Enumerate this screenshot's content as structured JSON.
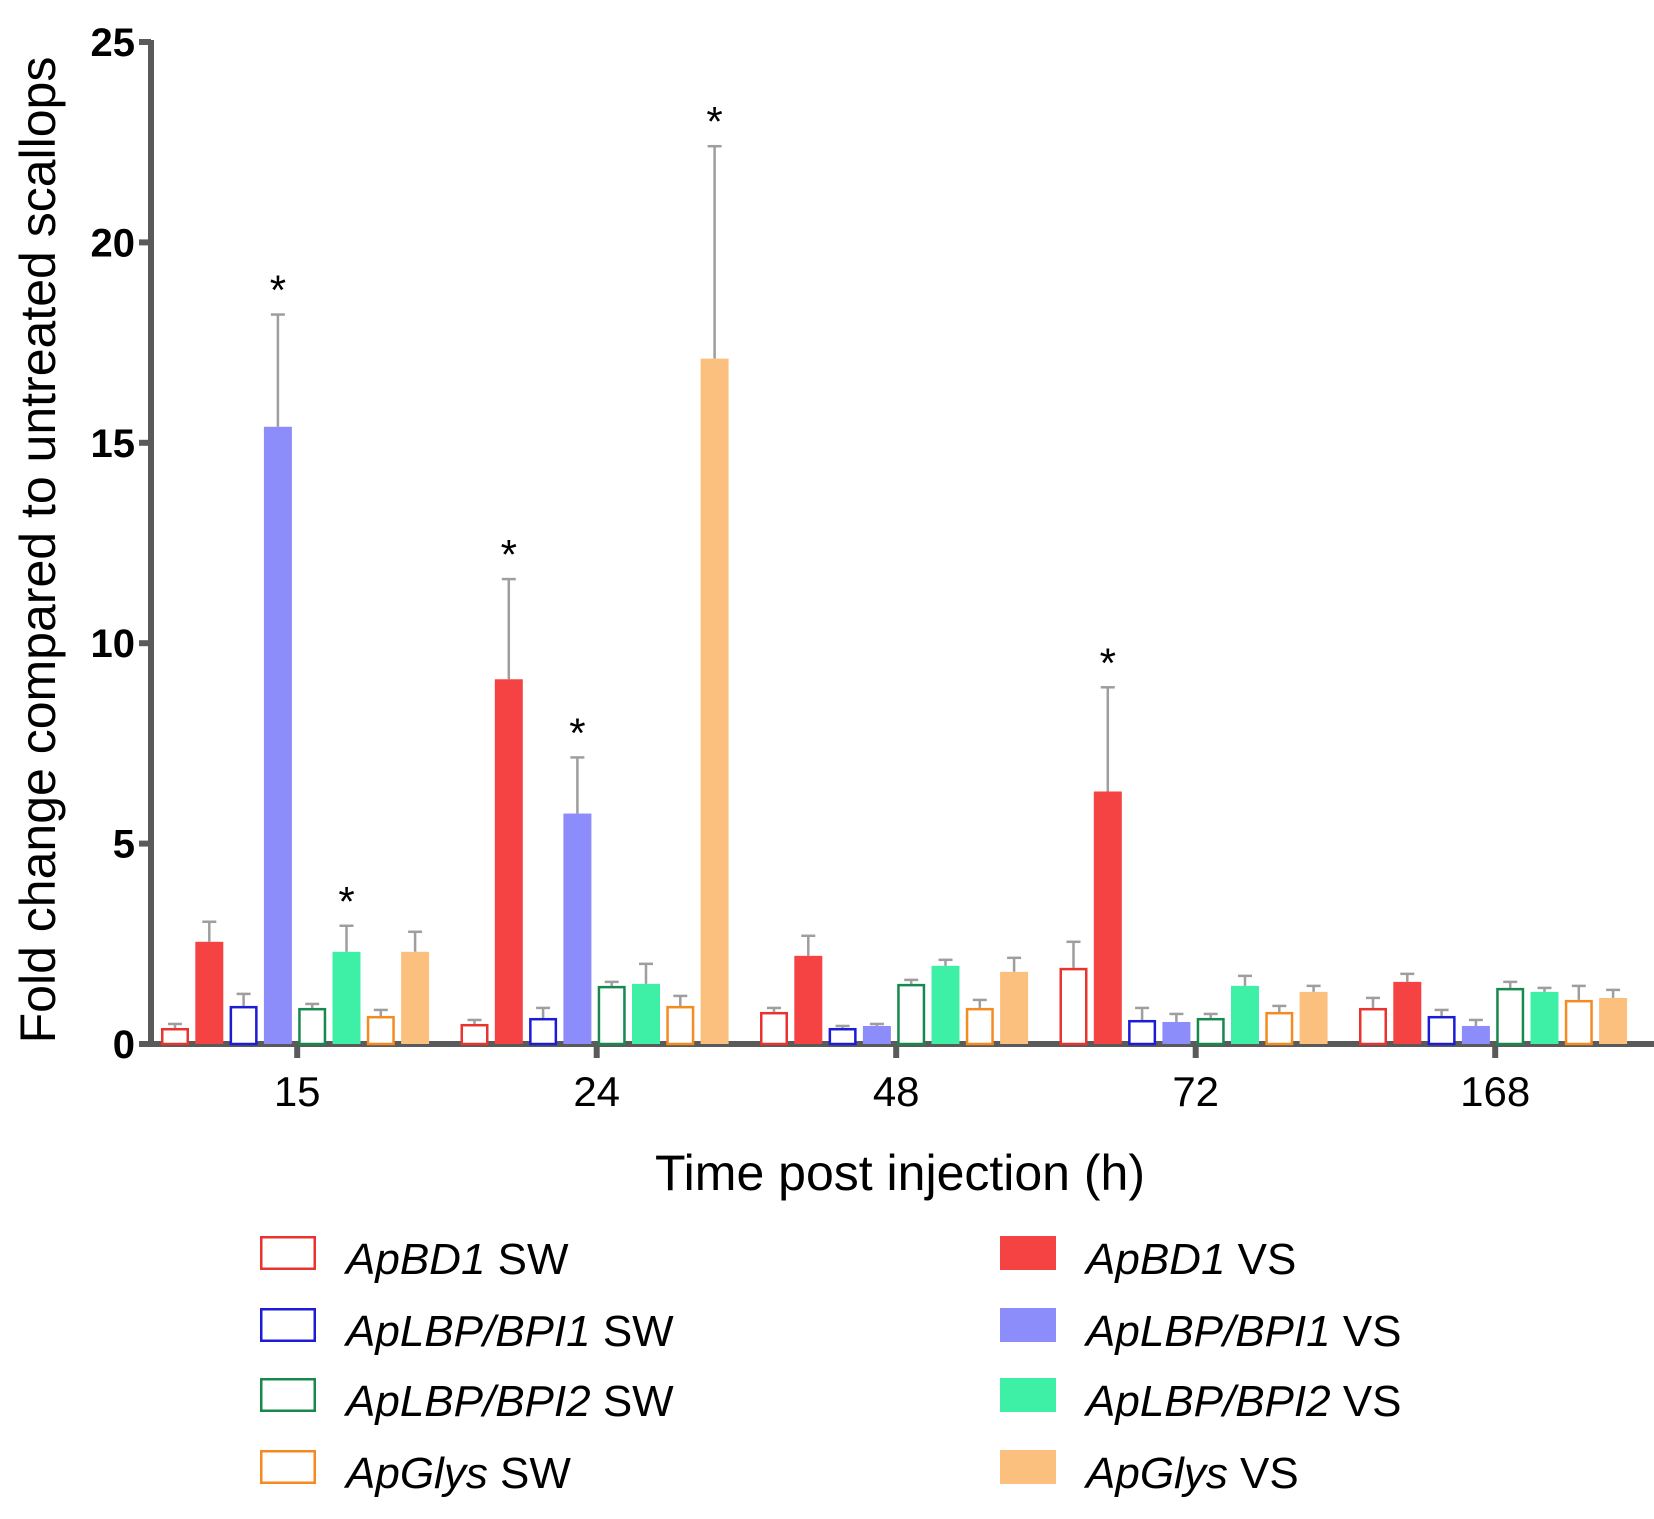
{
  "chart_data": {
    "type": "bar",
    "title": "",
    "xlabel": "Time post injection (h)",
    "ylabel": "Fold change compared to untreated scallops",
    "ylim": [
      0,
      25
    ],
    "yticks": [
      0,
      5,
      10,
      15,
      20,
      25
    ],
    "categories": [
      "15",
      "24",
      "48",
      "72",
      "168"
    ],
    "error_bar_color": "#9e9e9e",
    "series": [
      {
        "name": "SW",
        "gene": "ApBD1",
        "style": "open",
        "color": "#e8332f",
        "values": [
          0.4,
          0.5,
          0.8,
          1.9,
          0.9
        ],
        "errors": [
          0.1,
          0.1,
          0.1,
          0.65,
          0.25
        ],
        "significant": [
          false,
          false,
          false,
          false,
          false
        ]
      },
      {
        "name": "VS",
        "gene": "ApBD1",
        "style": "filled",
        "color": "#f54242",
        "values": [
          2.55,
          9.1,
          2.2,
          6.3,
          1.55
        ],
        "errors": [
          0.5,
          2.5,
          0.5,
          2.6,
          0.2
        ],
        "significant": [
          false,
          true,
          false,
          true,
          false
        ]
      },
      {
        "name": "SW",
        "gene": "ApLBP/BPI1",
        "style": "open",
        "color": "#1c1cd6",
        "values": [
          0.95,
          0.65,
          0.4,
          0.6,
          0.7
        ],
        "errors": [
          0.3,
          0.25,
          0.05,
          0.3,
          0.15
        ],
        "significant": [
          false,
          false,
          false,
          false,
          false
        ]
      },
      {
        "name": "VS",
        "gene": "ApLBP/BPI1",
        "style": "filled",
        "color": "#8c8cfa",
        "values": [
          15.4,
          5.75,
          0.45,
          0.55,
          0.45
        ],
        "errors": [
          2.8,
          1.4,
          0.05,
          0.2,
          0.15
        ],
        "significant": [
          true,
          true,
          false,
          false,
          false
        ]
      },
      {
        "name": "SW",
        "gene": "ApLBP/BPI2",
        "style": "open",
        "color": "#17884e",
        "values": [
          0.9,
          1.45,
          1.5,
          0.65,
          1.4
        ],
        "errors": [
          0.1,
          0.1,
          0.1,
          0.1,
          0.15
        ],
        "significant": [
          false,
          false,
          false,
          false,
          false
        ]
      },
      {
        "name": "VS",
        "gene": "ApLBP/BPI2",
        "style": "filled",
        "color": "#3ef0a6",
        "values": [
          2.3,
          1.5,
          1.95,
          1.45,
          1.3
        ],
        "errors": [
          0.65,
          0.5,
          0.15,
          0.25,
          0.1
        ],
        "significant": [
          true,
          false,
          false,
          false,
          false
        ]
      },
      {
        "name": "SW",
        "gene": "ApGlys",
        "style": "open",
        "color": "#f58a21",
        "values": [
          0.7,
          0.95,
          0.9,
          0.8,
          1.1
        ],
        "errors": [
          0.15,
          0.25,
          0.2,
          0.15,
          0.35
        ],
        "significant": [
          false,
          false,
          false,
          false,
          false
        ]
      },
      {
        "name": "VS",
        "gene": "ApGlys",
        "style": "filled",
        "color": "#fcc07e",
        "values": [
          2.3,
          17.1,
          1.8,
          1.3,
          1.15
        ],
        "errors": [
          0.5,
          5.3,
          0.35,
          0.15,
          0.2
        ],
        "significant": [
          false,
          true,
          false,
          false,
          false
        ]
      }
    ],
    "significance_marker": "*",
    "legend": {
      "placement": "bottom",
      "entries": [
        {
          "gene": "ApBD1",
          "suffix": "SW",
          "style": "open",
          "color": "#e8332f"
        },
        {
          "gene": "ApBD1",
          "suffix": "VS",
          "style": "filled",
          "color": "#f54242"
        },
        {
          "gene": "ApLBP/BPI1",
          "suffix": "SW",
          "style": "open",
          "color": "#1c1cd6"
        },
        {
          "gene": "ApLBP/BPI1",
          "suffix": "VS",
          "style": "filled",
          "color": "#8c8cfa"
        },
        {
          "gene": "ApLBP/BPI2",
          "suffix": "SW",
          "style": "open",
          "color": "#17884e"
        },
        {
          "gene": "ApLBP/BPI2",
          "suffix": "VS",
          "style": "filled",
          "color": "#3ef0a6"
        },
        {
          "gene": "ApGlys",
          "suffix": "SW",
          "style": "open",
          "color": "#f58a21"
        },
        {
          "gene": "ApGlys",
          "suffix": "VS",
          "style": "filled",
          "color": "#fcc07e"
        }
      ]
    }
  }
}
